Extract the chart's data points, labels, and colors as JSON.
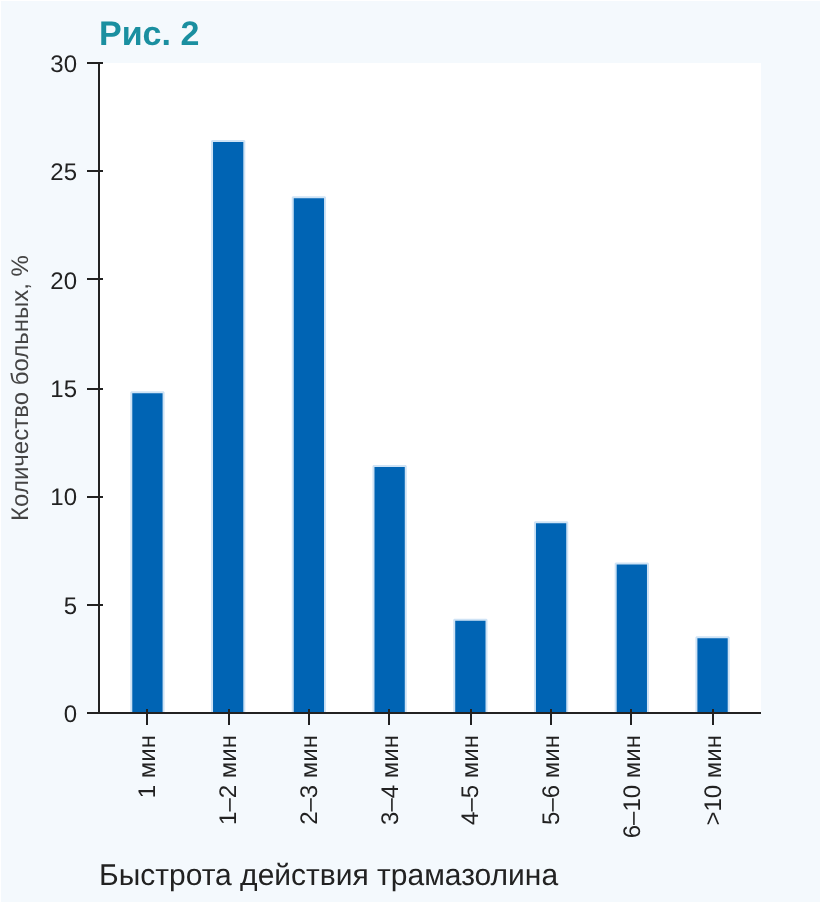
{
  "chart_data": {
    "type": "bar",
    "title": "Рис. 2",
    "ylabel": "Количество больных, %",
    "categories": [
      "1 мин",
      "1–2 мин",
      "2–3 мин",
      "3–4 мин",
      "4–5 мин",
      "5–6 мин",
      "6–10 мин",
      ">10 мин"
    ],
    "values": [
      14.8,
      26.4,
      23.8,
      11.4,
      4.3,
      8.8,
      6.9,
      3.5
    ],
    "color": "#0064b4",
    "ylim": [
      0,
      30
    ],
    "yticks": [
      0,
      5,
      10,
      15,
      20,
      25,
      30
    ],
    "grid": false,
    "annotations": [
      "Быстрота действия трамазолина"
    ]
  }
}
